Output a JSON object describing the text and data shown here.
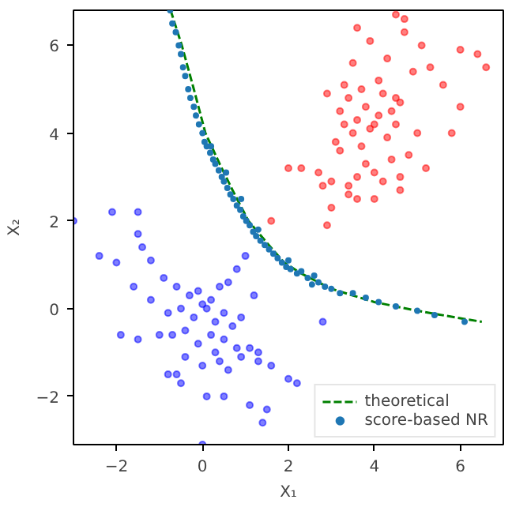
{
  "chart_data": {
    "type": "scatter",
    "xlabel": "X₁",
    "ylabel": "X₂",
    "xlim": [
      -3,
      7
    ],
    "ylim": [
      -3.1,
      6.8
    ],
    "xticks": [
      -2,
      0,
      2,
      4,
      6
    ],
    "yticks": [
      -2,
      0,
      2,
      4,
      6
    ],
    "grid": false,
    "legend": "bottom right",
    "series": [
      {
        "color": "#0000ff",
        "marker": "circle",
        "x": [
          -3.0,
          -2.1,
          -1.5,
          -1.5,
          -1.4,
          -2.4,
          -2.0,
          -1.2,
          -0.9,
          -0.6,
          -0.3,
          -0.1,
          0.0,
          0.2,
          0.4,
          0.6,
          0.8,
          1.0,
          -1.6,
          -1.2,
          -0.8,
          -0.5,
          -0.2,
          0.1,
          0.3,
          0.5,
          0.7,
          0.9,
          1.2,
          -1.9,
          -1.5,
          -1.0,
          -0.7,
          -0.4,
          -0.1,
          0.2,
          0.5,
          0.8,
          1.1,
          1.3,
          -0.8,
          -0.4,
          0.0,
          0.3,
          0.6,
          0.9,
          1.3,
          1.6,
          2.0,
          2.2,
          1.5,
          1.1,
          0.5,
          0.1,
          -0.5,
          2.8,
          1.4,
          0.0,
          -0.6,
          0.4
        ],
        "values": [
          2.0,
          2.2,
          2.2,
          1.7,
          1.4,
          1.2,
          1.05,
          1.1,
          0.7,
          0.5,
          0.3,
          0.4,
          0.1,
          0.2,
          0.5,
          0.6,
          0.9,
          1.2,
          0.5,
          0.2,
          -0.1,
          0.0,
          -0.2,
          0.0,
          -0.3,
          -0.1,
          -0.4,
          -0.2,
          0.3,
          -0.6,
          -0.7,
          -0.6,
          -0.6,
          -0.5,
          -0.8,
          -0.6,
          -0.7,
          -0.9,
          -0.9,
          -1.0,
          -1.5,
          -1.1,
          -1.3,
          -1.0,
          -1.4,
          -1.1,
          -1.2,
          -1.3,
          -1.6,
          -1.7,
          -2.3,
          -2.2,
          -2.0,
          -2.0,
          -1.7,
          -0.3,
          -2.6,
          -3.1,
          -1.5,
          -1.2
        ]
      },
      {
        "color": "#ff0000",
        "marker": "circle",
        "x": [
          2.3,
          2.7,
          2.8,
          3.0,
          3.2,
          3.4,
          3.6,
          3.8,
          4.0,
          4.2,
          4.4,
          4.6,
          3.1,
          3.3,
          3.5,
          3.7,
          3.9,
          4.1,
          4.3,
          4.5,
          4.8,
          5.0,
          3.2,
          3.4,
          3.6,
          3.8,
          4.0,
          4.2,
          4.4,
          4.6,
          2.9,
          3.3,
          3.7,
          4.1,
          4.5,
          4.9,
          5.3,
          5.6,
          6.0,
          6.4,
          3.5,
          3.9,
          4.3,
          4.7,
          5.1,
          3.0,
          2.9,
          3.4,
          3.6,
          4.6,
          5.2,
          5.8,
          4.7,
          4.5,
          3.6,
          1.6,
          2.0,
          6.0,
          6.6,
          4.0
        ],
        "values": [
          3.2,
          3.1,
          2.8,
          2.9,
          3.6,
          2.8,
          3.0,
          3.3,
          3.1,
          2.9,
          3.4,
          3.0,
          3.8,
          4.2,
          4.0,
          3.7,
          4.1,
          4.4,
          3.9,
          4.2,
          3.5,
          4.0,
          4.5,
          4.8,
          4.3,
          4.6,
          4.2,
          4.9,
          4.5,
          4.7,
          4.9,
          5.1,
          5.0,
          5.2,
          4.8,
          5.4,
          5.5,
          5.1,
          5.9,
          5.8,
          5.6,
          6.1,
          5.7,
          6.3,
          6.0,
          2.3,
          1.9,
          2.6,
          2.5,
          2.7,
          3.2,
          4.0,
          6.6,
          6.7,
          6.4,
          2.0,
          3.2,
          4.6,
          5.5,
          2.5
        ]
      },
      {
        "name": "theoretical",
        "type": "line",
        "color": "#008000",
        "line_style": "dashed",
        "x": [
          -0.74,
          -0.48,
          -0.2,
          0.07,
          0.4,
          0.7,
          1.07,
          1.5,
          1.9,
          2.3,
          3.0,
          4.0,
          5.0,
          6.0,
          6.5
        ],
        "values": [
          6.8,
          6.0,
          5.0,
          4.0,
          3.3,
          2.7,
          2.0,
          1.5,
          1.05,
          0.8,
          0.45,
          0.15,
          -0.05,
          -0.22,
          -0.3
        ]
      },
      {
        "name": "score-based NR",
        "color": "#1f77b4",
        "marker": "circle",
        "x": [
          -0.75,
          -0.7,
          -0.62,
          -0.55,
          -0.5,
          -0.45,
          -0.4,
          -0.33,
          -0.28,
          -0.2,
          -0.15,
          -0.08,
          0.0,
          0.05,
          0.1,
          0.18,
          0.25,
          0.3,
          0.38,
          0.45,
          0.5,
          0.58,
          0.65,
          0.72,
          0.8,
          0.88,
          0.95,
          1.02,
          1.1,
          1.18,
          1.25,
          1.35,
          1.45,
          1.55,
          1.65,
          1.75,
          1.85,
          1.95,
          2.05,
          2.2,
          2.3,
          2.45,
          2.55,
          2.7,
          2.85,
          3.0,
          3.2,
          3.5,
          3.8,
          4.1,
          4.5,
          5.0,
          5.4,
          6.1,
          2.6,
          0.55,
          1.3,
          2.0,
          0.9,
          0.2
        ],
        "values": [
          6.8,
          6.5,
          6.3,
          6.0,
          5.8,
          5.5,
          5.3,
          5.0,
          4.8,
          4.6,
          4.4,
          4.2,
          4.0,
          3.8,
          3.7,
          3.55,
          3.4,
          3.3,
          3.15,
          3.0,
          2.9,
          2.75,
          2.6,
          2.5,
          2.35,
          2.25,
          2.1,
          2.0,
          1.9,
          1.75,
          1.65,
          1.55,
          1.45,
          1.35,
          1.25,
          1.15,
          1.05,
          0.95,
          0.9,
          0.8,
          0.85,
          0.7,
          0.55,
          0.6,
          0.5,
          0.45,
          0.35,
          0.35,
          0.25,
          0.15,
          0.05,
          -0.05,
          -0.15,
          -0.3,
          0.75,
          3.1,
          1.8,
          1.1,
          2.5,
          3.7
        ]
      }
    ]
  }
}
